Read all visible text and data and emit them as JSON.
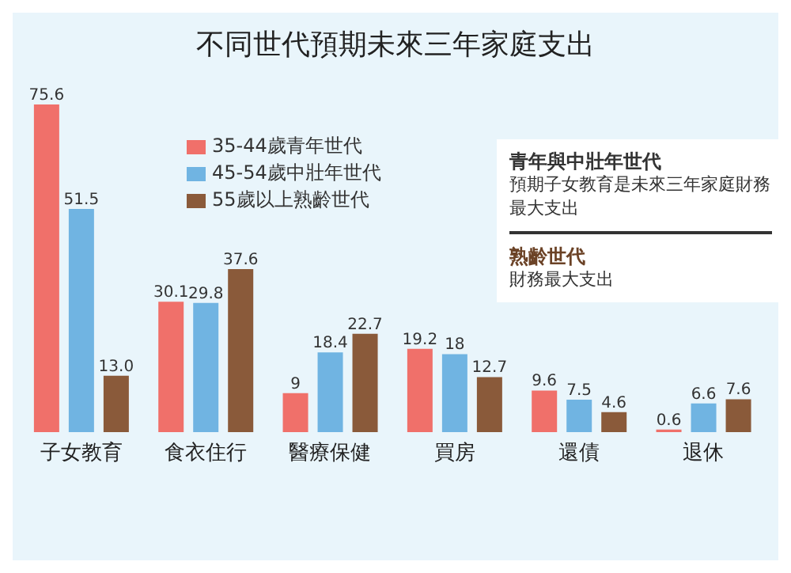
{
  "chart_data": {
    "type": "bar",
    "title": "不同世代預期未來三年家庭支出",
    "categories": [
      "子女教育",
      "食衣住行",
      "醫療保健",
      "買房",
      "還債",
      "退休"
    ],
    "series": [
      {
        "name": "35-44歲青年世代",
        "color": "#f0706a",
        "values": [
          75.6,
          30.1,
          9,
          19.2,
          9.6,
          0.6
        ],
        "value_labels": [
          "75.6",
          "30.1",
          "9",
          "19.2",
          "9.6",
          "0.6"
        ]
      },
      {
        "name": "45-54歲中壯年世代",
        "color": "#70b4e2",
        "values": [
          51.5,
          29.8,
          18.4,
          18,
          7.5,
          6.6
        ],
        "value_labels": [
          "51.5",
          "29.8",
          "18.4",
          "18",
          "7.5",
          "6.6"
        ]
      },
      {
        "name": "55歲以上熟齡世代",
        "color": "#8a5a3a",
        "values": [
          13.0,
          37.6,
          22.7,
          12.7,
          4.6,
          7.6
        ],
        "value_labels": [
          "13.0",
          "37.6",
          "22.7",
          "12.7",
          "4.6",
          "7.6"
        ]
      }
    ],
    "legend": "top left",
    "annotations": [
      "青年與中壯年世代",
      "預期子女教育是未來三年家庭財務最大支出",
      "熟齡世代",
      "財務最大支出"
    ]
  }
}
